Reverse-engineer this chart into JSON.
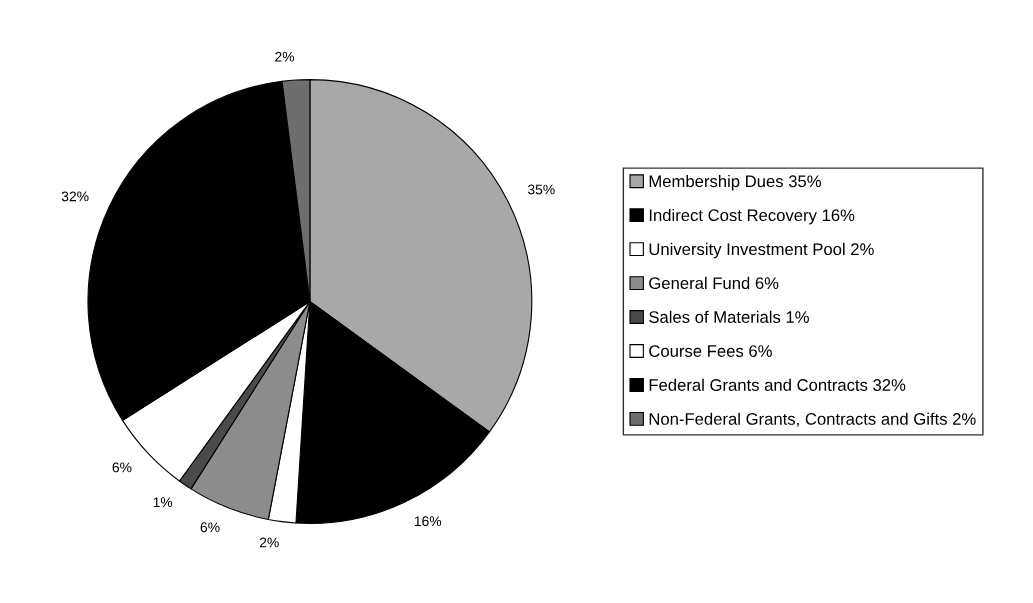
{
  "chart_data": {
    "type": "pie",
    "categories": [
      "Membership Dues 35%",
      "Indirect Cost Recovery 16%",
      "University Investment Pool 2%",
      "General Fund 6%",
      "Sales of Materials 1%",
      "Course Fees 6%",
      "Federal Grants and Contracts 32%",
      "Non-Federal Grants, Contracts and Gifts 2%"
    ],
    "values": [
      35,
      16,
      2,
      6,
      1,
      6,
      32,
      2
    ],
    "value_labels": [
      "35%",
      "16%",
      "2%",
      "6%",
      "1%",
      "6%",
      "32%",
      "2%"
    ],
    "colors": [
      "#a8a8a8",
      "#000000",
      "#ffffff",
      "#8c8c8c",
      "#4a4a4a",
      "#ffffff",
      "#000000",
      "#6e6e6e"
    ],
    "legend": "right"
  }
}
